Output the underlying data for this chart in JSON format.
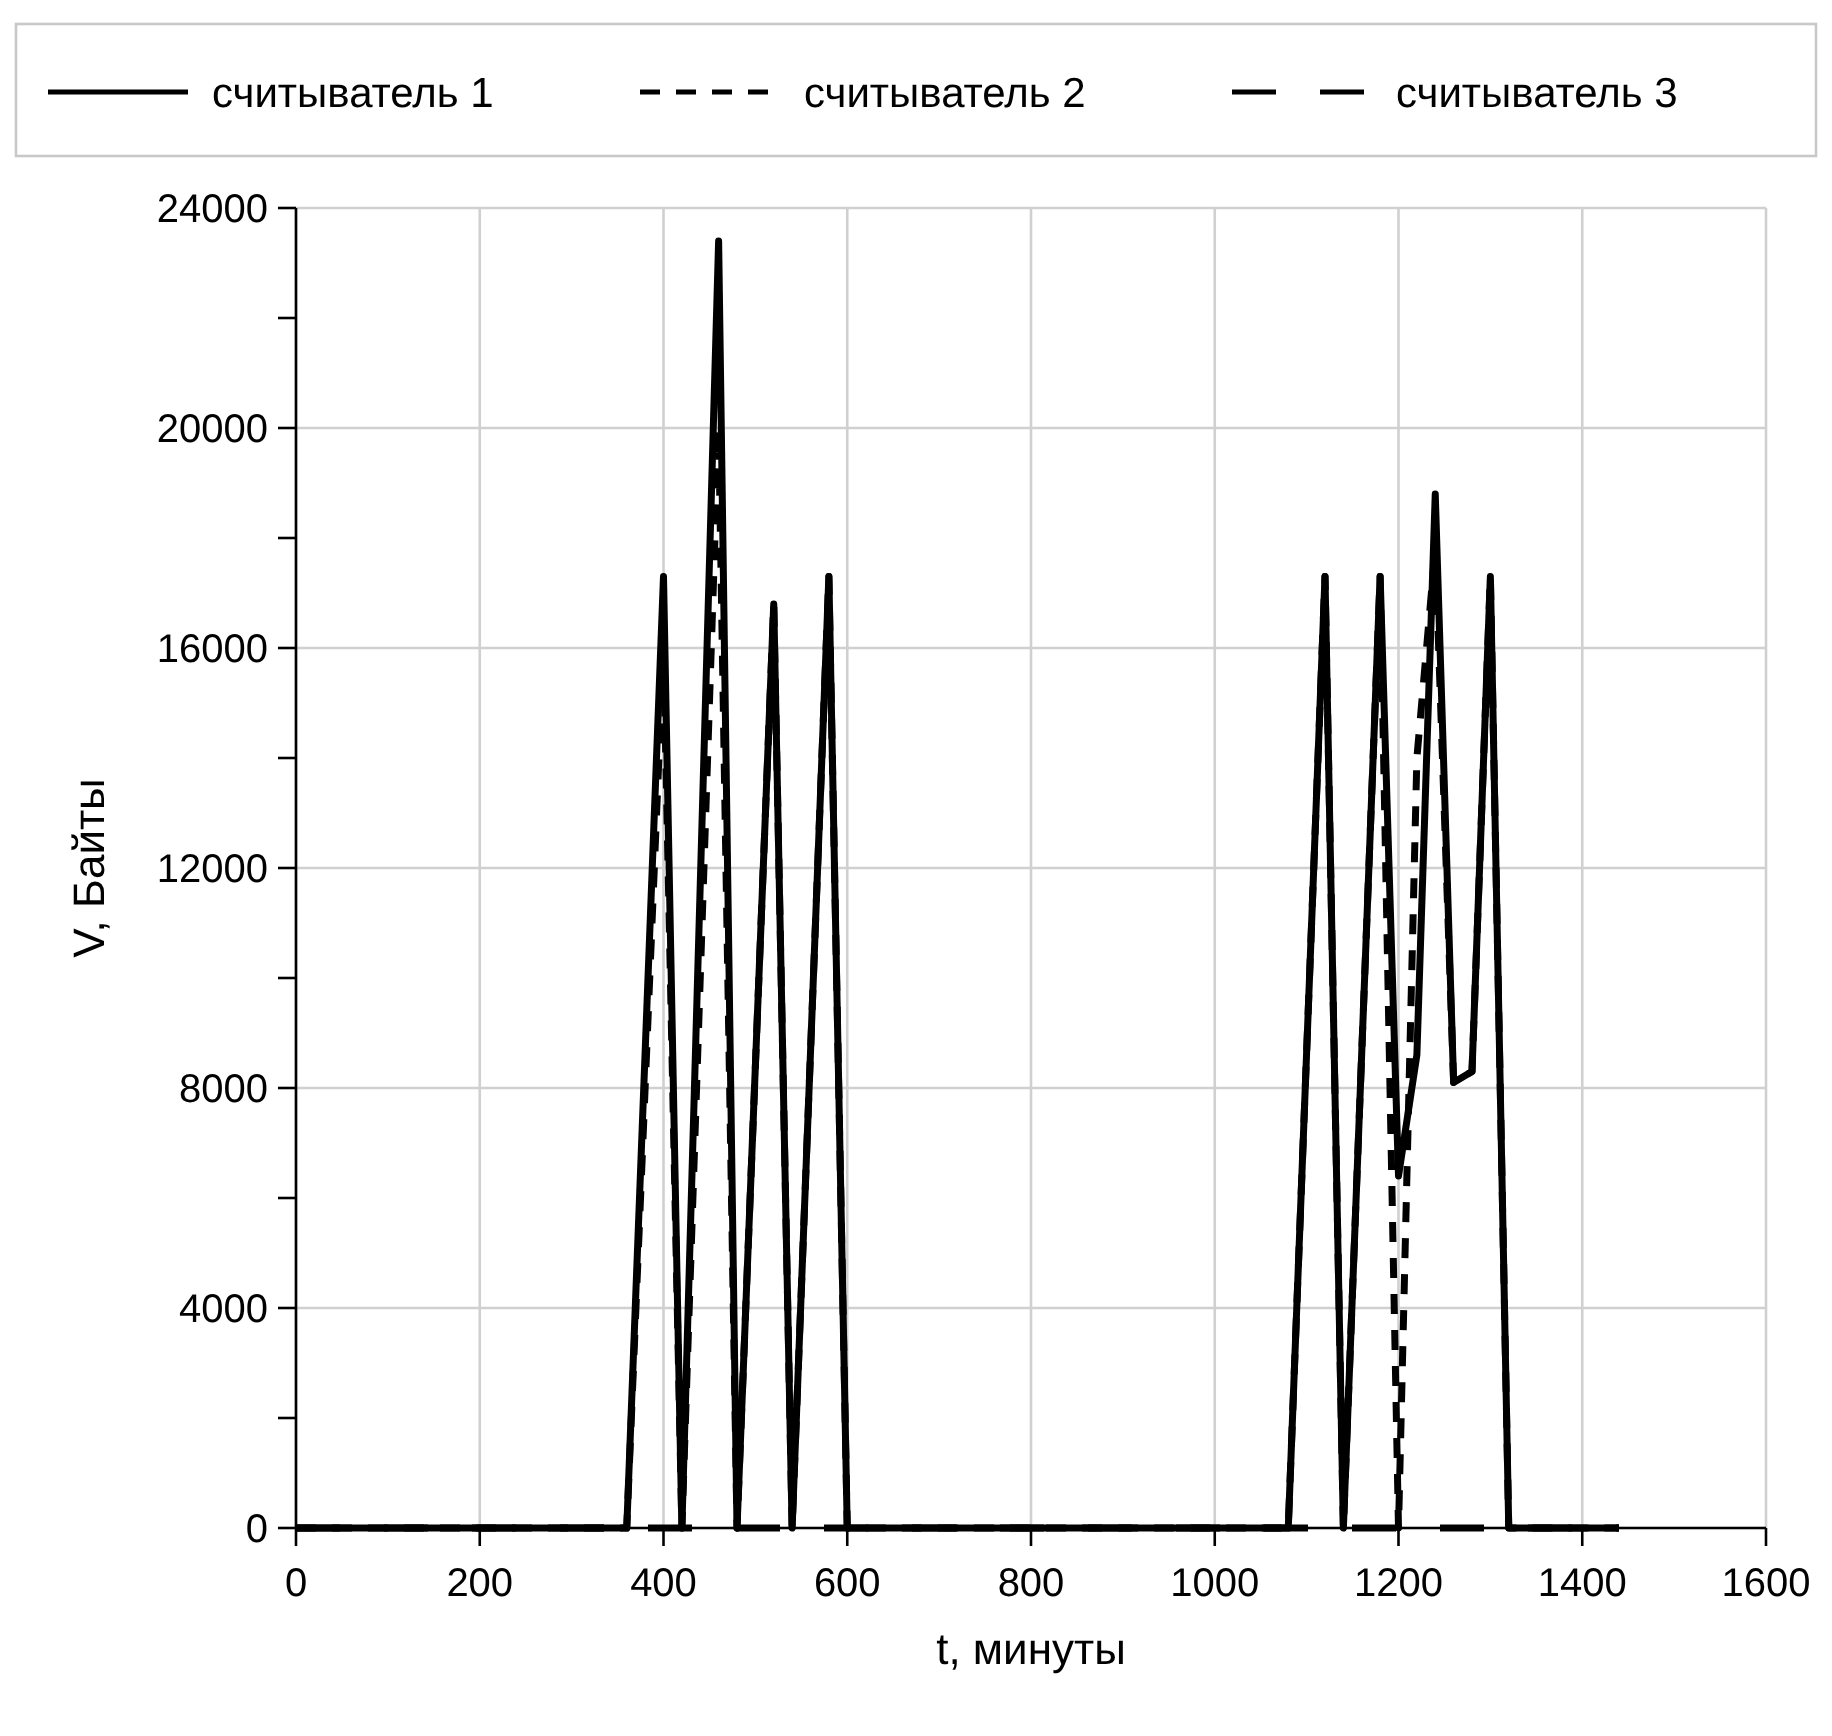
{
  "chart_data": {
    "type": "line",
    "xlabel": "t, минуты",
    "ylabel": "V, Байты",
    "xlim": [
      0,
      1600
    ],
    "xticks": [
      0,
      200,
      400,
      600,
      800,
      1000,
      1200,
      1400,
      1600
    ],
    "ylim": [
      0,
      24000
    ],
    "yticks": [
      0,
      {
        "value": 2000,
        "label": null
      },
      4000,
      {
        "value": 6000,
        "label": null
      },
      8000,
      {
        "value": 10000,
        "label": null
      },
      12000,
      {
        "value": 14000,
        "label": null
      },
      16000,
      {
        "value": 18000,
        "label": null
      },
      20000,
      {
        "value": 22000,
        "label": null
      },
      24000
    ],
    "grid": true,
    "legend": "top",
    "series": [
      {
        "name": "считыватель 1",
        "color": "#000000",
        "line_style": "solid",
        "x": [
          0,
          360,
          400,
          420,
          460,
          480,
          520,
          540,
          580,
          600,
          1080,
          1120,
          1140,
          1180,
          1200,
          1220,
          1240,
          1260,
          1280,
          1300,
          1320,
          1440
        ],
        "values": [
          0,
          0,
          17300,
          0,
          23400,
          0,
          16800,
          0,
          17300,
          0,
          0,
          17300,
          0,
          17300,
          6400,
          8600,
          18800,
          8100,
          8300,
          17300,
          0,
          0
        ]
      },
      {
        "name": "считыватель 2",
        "color": "#000000",
        "line_style": "dashed",
        "x": [
          0,
          360,
          400,
          420,
          460,
          480,
          520,
          540,
          580,
          600,
          1080,
          1120,
          1140,
          1180,
          1200,
          1220,
          1240,
          1260,
          1280,
          1300,
          1320,
          1440
        ],
        "values": [
          0,
          0,
          16000,
          0,
          20000,
          0,
          16800,
          0,
          17300,
          0,
          0,
          17300,
          0,
          17300,
          0,
          14000,
          17800,
          8100,
          8300,
          17300,
          0,
          0
        ]
      },
      {
        "name": "считыватель 3",
        "color": "#000000",
        "line_style": "dashed",
        "x": [
          0,
          1440
        ],
        "values": [
          0,
          0
        ]
      }
    ]
  }
}
